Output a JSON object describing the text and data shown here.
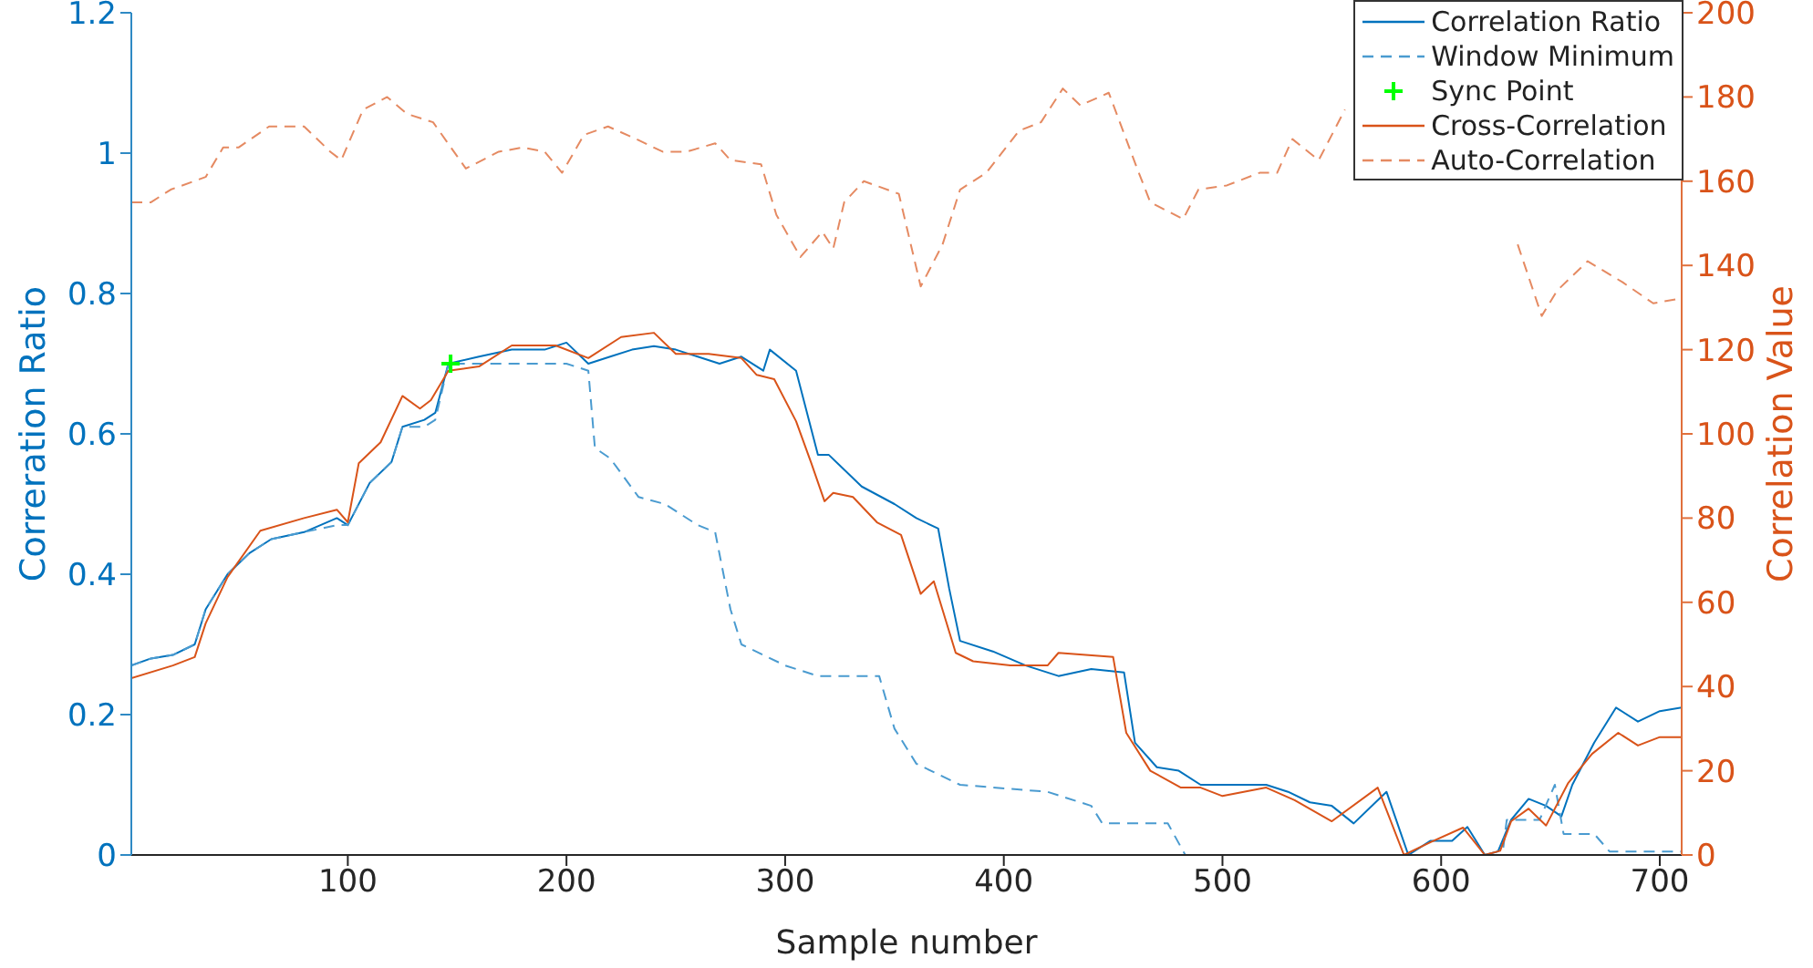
{
  "chart_data": {
    "type": "line",
    "xlabel": "Sample number",
    "ylabel": "Correration Ratio",
    "y2label": "Correlation Value",
    "xlim": [
      1,
      710
    ],
    "xticks": [
      100,
      200,
      300,
      400,
      500,
      600,
      700
    ],
    "ylim": [
      0,
      1.2
    ],
    "yticks": [
      0,
      0.2,
      0.4,
      0.6,
      0.8,
      1,
      1.2
    ],
    "y2lim": [
      0,
      200
    ],
    "y2ticks": [
      0,
      20,
      40,
      60,
      80,
      100,
      120,
      140,
      160,
      180,
      200
    ],
    "legend": "top right",
    "series": [
      {
        "name": "Correlation Ratio",
        "color": "#0072bd",
        "line_style": "solid",
        "x": [
          1,
          10,
          20,
          30,
          35,
          45,
          55,
          65,
          80,
          95,
          100,
          110,
          120,
          125,
          135,
          140,
          146,
          160,
          175,
          190,
          200,
          210,
          220,
          230,
          240,
          250,
          260,
          270,
          280,
          290,
          293,
          305,
          315,
          320,
          335,
          350,
          360,
          370,
          375,
          380,
          395,
          410,
          425,
          440,
          455,
          460,
          470,
          480,
          490,
          500,
          520,
          530,
          540,
          550,
          560,
          570,
          575,
          585,
          595,
          605,
          612,
          620,
          626,
          632,
          640,
          648,
          655,
          660,
          670,
          680,
          690,
          700,
          710
        ],
        "values": [
          0.27,
          0.28,
          0.285,
          0.3,
          0.35,
          0.4,
          0.43,
          0.45,
          0.46,
          0.48,
          0.47,
          0.53,
          0.56,
          0.61,
          0.62,
          0.63,
          0.7,
          0.71,
          0.72,
          0.72,
          0.73,
          0.7,
          0.71,
          0.72,
          0.725,
          0.72,
          0.71,
          0.7,
          0.71,
          0.69,
          0.72,
          0.69,
          0.57,
          0.57,
          0.525,
          0.5,
          0.48,
          0.465,
          0.38,
          0.305,
          0.29,
          0.27,
          0.255,
          0.265,
          0.26,
          0.16,
          0.125,
          0.12,
          0.1,
          0.1,
          0.1,
          0.09,
          0.075,
          0.07,
          0.045,
          0.075,
          0.09,
          0,
          0.02,
          0.02,
          0.04,
          0,
          0.005,
          0.05,
          0.08,
          0.07,
          0.055,
          0.1,
          0.16,
          0.21,
          0.19,
          0.205,
          0.21
        ]
      },
      {
        "name": "Window Minimum",
        "color": "#4a9bd0",
        "line_style": "dashed",
        "x": [
          1,
          10,
          20,
          30,
          35,
          45,
          55,
          65,
          80,
          95,
          100,
          110,
          120,
          125,
          135,
          140,
          146,
          200,
          210,
          213,
          220,
          233,
          245,
          260,
          268,
          275,
          280,
          300,
          315,
          343,
          350,
          360,
          380,
          420,
          440,
          445,
          475,
          483,
          628,
          630,
          645,
          652,
          656,
          670,
          677,
          710
        ],
        "values": [
          0.27,
          0.28,
          0.285,
          0.3,
          0.35,
          0.4,
          0.43,
          0.45,
          0.46,
          0.47,
          0.47,
          0.53,
          0.56,
          0.61,
          0.61,
          0.62,
          0.7,
          0.7,
          0.69,
          0.58,
          0.565,
          0.51,
          0.5,
          0.47,
          0.46,
          0.35,
          0.3,
          0.27,
          0.255,
          0.255,
          0.18,
          0.13,
          0.1,
          0.09,
          0.07,
          0.045,
          0.045,
          0,
          0,
          0.05,
          0.05,
          0.1,
          0.03,
          0.03,
          0.005,
          0.005
        ]
      },
      {
        "name": "Sync Point",
        "type": "scatter",
        "color": "#00ff00",
        "marker": "cross",
        "x": [
          147
        ],
        "values": [
          0.7
        ]
      },
      {
        "name": "Cross-Correlation",
        "color": "#d95319",
        "line_style": "solid",
        "axis": "y2",
        "x": [
          1,
          20,
          30,
          35,
          45,
          60,
          80,
          95,
          100,
          105,
          115,
          125,
          133,
          138,
          146,
          160,
          175,
          195,
          210,
          225,
          240,
          250,
          265,
          280,
          287,
          295,
          305,
          312,
          318,
          322,
          331,
          342,
          353,
          362,
          368,
          378,
          386,
          403,
          420,
          425,
          450,
          456,
          467,
          481,
          490,
          500,
          520,
          533,
          550,
          571,
          583,
          595,
          610,
          620,
          627,
          632,
          640,
          648,
          658,
          669,
          681,
          690,
          700,
          710
        ],
        "values": [
          42,
          45,
          47,
          55,
          66,
          77,
          80,
          82,
          79,
          93,
          98,
          109,
          106,
          108,
          115,
          116,
          121,
          121,
          118,
          123,
          124,
          119,
          119,
          118,
          114,
          113,
          103,
          93,
          84,
          86,
          85,
          79,
          76,
          62,
          65,
          48,
          46,
          45,
          45,
          48,
          47,
          29,
          20,
          16,
          16,
          14,
          16,
          13,
          8,
          16,
          0,
          3,
          6.5,
          0,
          1,
          8,
          11,
          7,
          17,
          24,
          29,
          26,
          28,
          28
        ]
      },
      {
        "name": "Auto-Correlation",
        "color": "#e58a62",
        "line_style": "dashed",
        "axis": "y2",
        "x": [
          1,
          10,
          19,
          35,
          43,
          50,
          64,
          80,
          92,
          97,
          107,
          118,
          127,
          139,
          154,
          169,
          180,
          190,
          198,
          208,
          219,
          232,
          244,
          255,
          268,
          275,
          289,
          296,
          307,
          317,
          322,
          327,
          336,
          352,
          362,
          372,
          380,
          392,
          407,
          417,
          427,
          435,
          448,
          461,
          467,
          482,
          489,
          502,
          517,
          525,
          532,
          544,
          556,
          560,
          583,
          586,
          592,
          600,
          615,
          625,
          635,
          646,
          653,
          667,
          683,
          697,
          708
        ],
        "values": [
          155,
          155,
          158,
          161,
          168,
          168,
          173,
          173,
          167,
          165,
          177,
          180,
          176,
          174,
          163,
          167,
          168,
          167,
          162,
          171,
          173,
          170,
          167,
          167,
          169,
          165,
          164,
          152,
          142,
          148,
          144,
          155,
          160,
          157,
          135,
          145,
          158,
          162,
          172,
          174,
          182,
          178,
          181,
          163,
          155,
          151,
          158,
          159,
          162,
          162,
          170,
          165,
          177,
          null,
          null,
          null,
          null,
          null,
          null,
          null,
          145,
          128,
          134,
          141,
          136,
          131,
          132
        ]
      }
    ]
  }
}
